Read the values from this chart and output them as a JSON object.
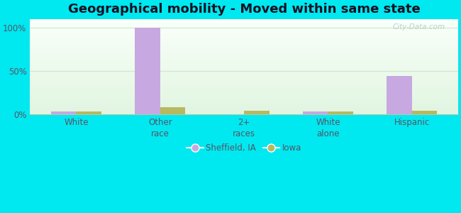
{
  "title": "Geographical mobility - Moved within same state",
  "categories": [
    "White",
    "Other\nrace",
    "2+\nraces",
    "White\nalone",
    "Hispanic"
  ],
  "sheffield_values": [
    3,
    100,
    0,
    3,
    44
  ],
  "iowa_values": [
    3,
    8,
    4,
    3,
    4
  ],
  "sheffield_color": "#c8a8e0",
  "iowa_color": "#b8b860",
  "bar_width": 0.3,
  "ylim": [
    0,
    110
  ],
  "yticks": [
    0,
    50,
    100
  ],
  "ytick_labels": [
    "0%",
    "50%",
    "100%"
  ],
  "background_color": "#00e8f0",
  "legend_labels": [
    "Sheffield, IA",
    "Iowa"
  ],
  "watermark": "City-Data.com",
  "title_fontsize": 13,
  "tick_fontsize": 8.5,
  "legend_fontsize": 8.5,
  "grid_color": "#d0e8d0",
  "axis_line_color": "#aaccaa"
}
